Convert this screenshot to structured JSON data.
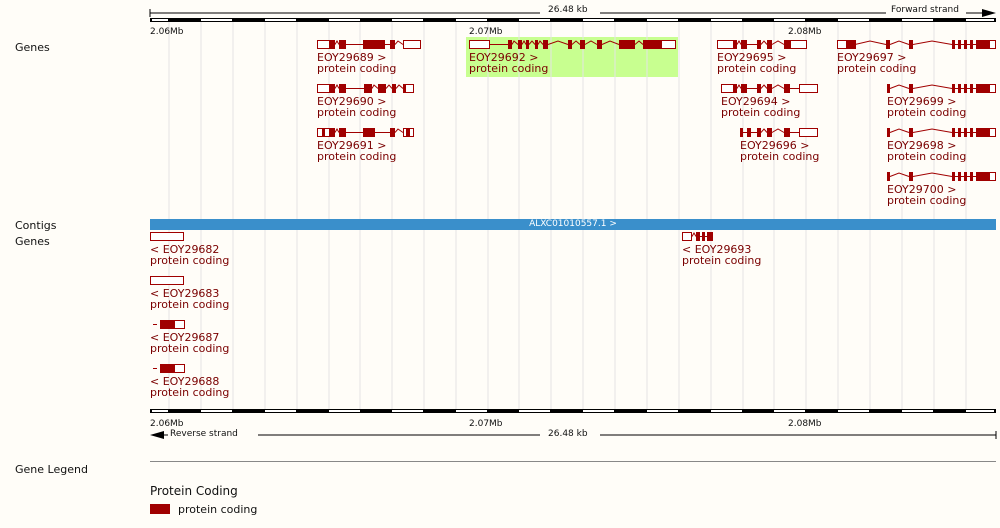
{
  "top_ruler": {
    "span_label": "26.48 kb",
    "strand_label": "Forward strand",
    "ticks": [
      "2.06Mb",
      "2.07Mb",
      "2.08Mb"
    ]
  },
  "bottom_ruler": {
    "span_label": "26.48 kb",
    "strand_label": "Reverse strand",
    "ticks": [
      "2.06Mb",
      "2.07Mb",
      "2.08Mb"
    ]
  },
  "track_labels": {
    "genes_forward": "Genes",
    "contigs": "Contigs",
    "genes_reverse": "Genes",
    "gene_legend": "Gene Legend"
  },
  "contig": {
    "label": "ALXC01010557.1 >"
  },
  "forward_genes": [
    {
      "id": "EOY29689 >",
      "type": "protein coding"
    },
    {
      "id": "EOY29690 >",
      "type": "protein coding"
    },
    {
      "id": "EOY29691 >",
      "type": "protein coding"
    },
    {
      "id": "EOY29692 >",
      "type": "protein coding",
      "highlighted": true
    },
    {
      "id": "EOY29695 >",
      "type": "protein coding"
    },
    {
      "id": "EOY29694 >",
      "type": "protein coding"
    },
    {
      "id": "EOY29696 >",
      "type": "protein coding"
    },
    {
      "id": "EOY29697 >",
      "type": "protein coding"
    },
    {
      "id": "EOY29699 >",
      "type": "protein coding"
    },
    {
      "id": "EOY29698 >",
      "type": "protein coding"
    },
    {
      "id": "EOY29700 >",
      "type": "protein coding"
    }
  ],
  "reverse_genes": [
    {
      "id": "< EOY29682",
      "type": "protein coding"
    },
    {
      "id": "< EOY29683",
      "type": "protein coding"
    },
    {
      "id": "< EOY29687",
      "type": "protein coding"
    },
    {
      "id": "< EOY29688",
      "type": "protein coding"
    },
    {
      "id": "< EOY29693",
      "type": "protein coding"
    }
  ],
  "legend": {
    "section_title": "Protein Coding",
    "item_label": "protein coding",
    "item_color": "#a00000"
  },
  "colors": {
    "exon": "#a00000",
    "highlight": "#c8ff90",
    "contig": "#3a8fcb"
  }
}
